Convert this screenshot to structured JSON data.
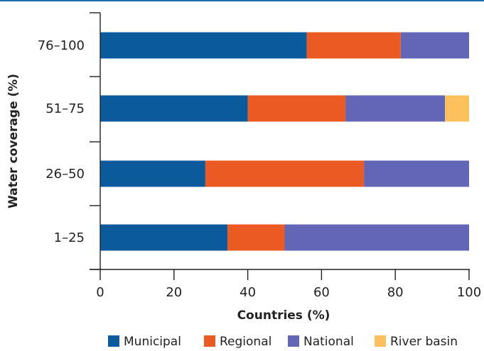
{
  "chart_data": {
    "type": "bar",
    "orientation": "horizontal",
    "stacked": true,
    "categories": [
      "76–100",
      "51–75",
      "26–50",
      "1–25"
    ],
    "series": [
      {
        "name": "Municipal",
        "color": "#0a5a9c",
        "values": [
          56,
          40,
          28.5,
          34.5
        ]
      },
      {
        "name": "Regional",
        "color": "#eb5a22",
        "values": [
          25.5,
          26.5,
          43,
          15.5
        ]
      },
      {
        "name": "National",
        "color": "#6266b4",
        "values": [
          18.5,
          27,
          28.5,
          50
        ]
      },
      {
        "name": "River basin",
        "color": "#fcc15c",
        "values": [
          0,
          6.5,
          0,
          0
        ]
      }
    ],
    "xlabel": "Countries (%)",
    "ylabel": "Water coverage (%)",
    "xlim": [
      0,
      100
    ],
    "xticks": [
      "0",
      "20",
      "40",
      "60",
      "80",
      "100"
    ],
    "grid": false,
    "legend_position": "bottom"
  }
}
